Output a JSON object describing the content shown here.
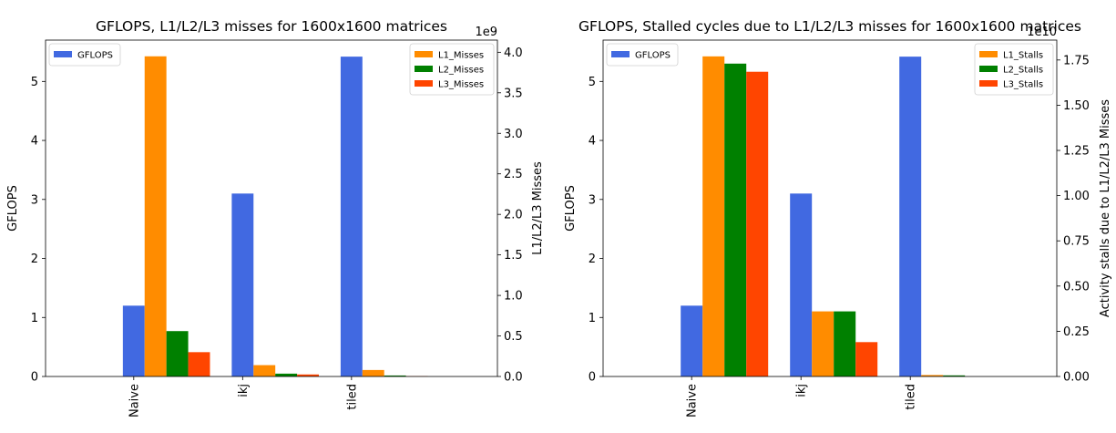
{
  "chart_data": [
    {
      "type": "bar",
      "title": "GFLOPS, L1/L2/L3 misses for 1600x1600 matrices",
      "categories": [
        "Naive",
        "ikj",
        "tiled"
      ],
      "ylabel": "GFLOPS",
      "ylim": [
        0,
        5.7
      ],
      "yticks": [
        0,
        1,
        2,
        3,
        4,
        5
      ],
      "y2label": "L1/L2/L3 Misses",
      "y2_offset_text": "1e9",
      "y2lim": [
        0,
        4.15
      ],
      "y2ticks": [
        "0.0",
        "0.5",
        "1.0",
        "1.5",
        "2.0",
        "2.5",
        "3.0",
        "3.5",
        "4.0"
      ],
      "grid": false,
      "series": [
        {
          "name": "GFLOPS",
          "axis": "left",
          "color": "#4169E1",
          "values": [
            1.2,
            3.1,
            5.42
          ]
        },
        {
          "name": "L1_Misses",
          "axis": "right",
          "color": "#FF8C00",
          "values": [
            3.95,
            0.14,
            0.08
          ]
        },
        {
          "name": "L2_Misses",
          "axis": "right",
          "color": "#008000",
          "values": [
            0.56,
            0.035,
            0.012
          ]
        },
        {
          "name": "L3_Misses",
          "axis": "right",
          "color": "#FF4500",
          "values": [
            0.3,
            0.025,
            0.004
          ]
        }
      ],
      "legends": [
        {
          "placement": "upper-left",
          "entries": [
            "GFLOPS"
          ]
        },
        {
          "placement": "upper-right",
          "entries": [
            "L1_Misses",
            "L2_Misses",
            "L3_Misses"
          ]
        }
      ]
    },
    {
      "type": "bar",
      "title": "GFLOPS, Stalled cycles due to L1/L2/L3 misses for 1600x1600 matrices",
      "categories": [
        "Naive",
        "ikj",
        "tiled"
      ],
      "ylabel": "GFLOPS",
      "ylim": [
        0,
        5.7
      ],
      "yticks": [
        0,
        1,
        2,
        3,
        4,
        5
      ],
      "y2label": "Activity stalls due to L1/L2/L3 Misses",
      "y2_offset_text": "1e10",
      "y2lim": [
        0,
        1.86
      ],
      "y2ticks": [
        "0.00",
        "0.25",
        "0.50",
        "0.75",
        "1.00",
        "1.25",
        "1.50",
        "1.75"
      ],
      "grid": false,
      "series": [
        {
          "name": "GFLOPS",
          "axis": "left",
          "color": "#4169E1",
          "values": [
            1.2,
            3.1,
            5.42
          ]
        },
        {
          "name": "L1_Stalls",
          "axis": "right",
          "color": "#FF8C00",
          "values": [
            1.77,
            0.36,
            0.008
          ]
        },
        {
          "name": "L2_Stalls",
          "axis": "right",
          "color": "#008000",
          "values": [
            1.73,
            0.36,
            0.006
          ]
        },
        {
          "name": "L3_Stalls",
          "axis": "right",
          "color": "#FF4500",
          "values": [
            1.685,
            0.19,
            0.0
          ]
        }
      ],
      "legends": [
        {
          "placement": "upper-left",
          "entries": [
            "GFLOPS"
          ]
        },
        {
          "placement": "upper-right",
          "entries": [
            "L1_Stalls",
            "L2_Stalls",
            "L3_Stalls"
          ]
        }
      ]
    }
  ]
}
